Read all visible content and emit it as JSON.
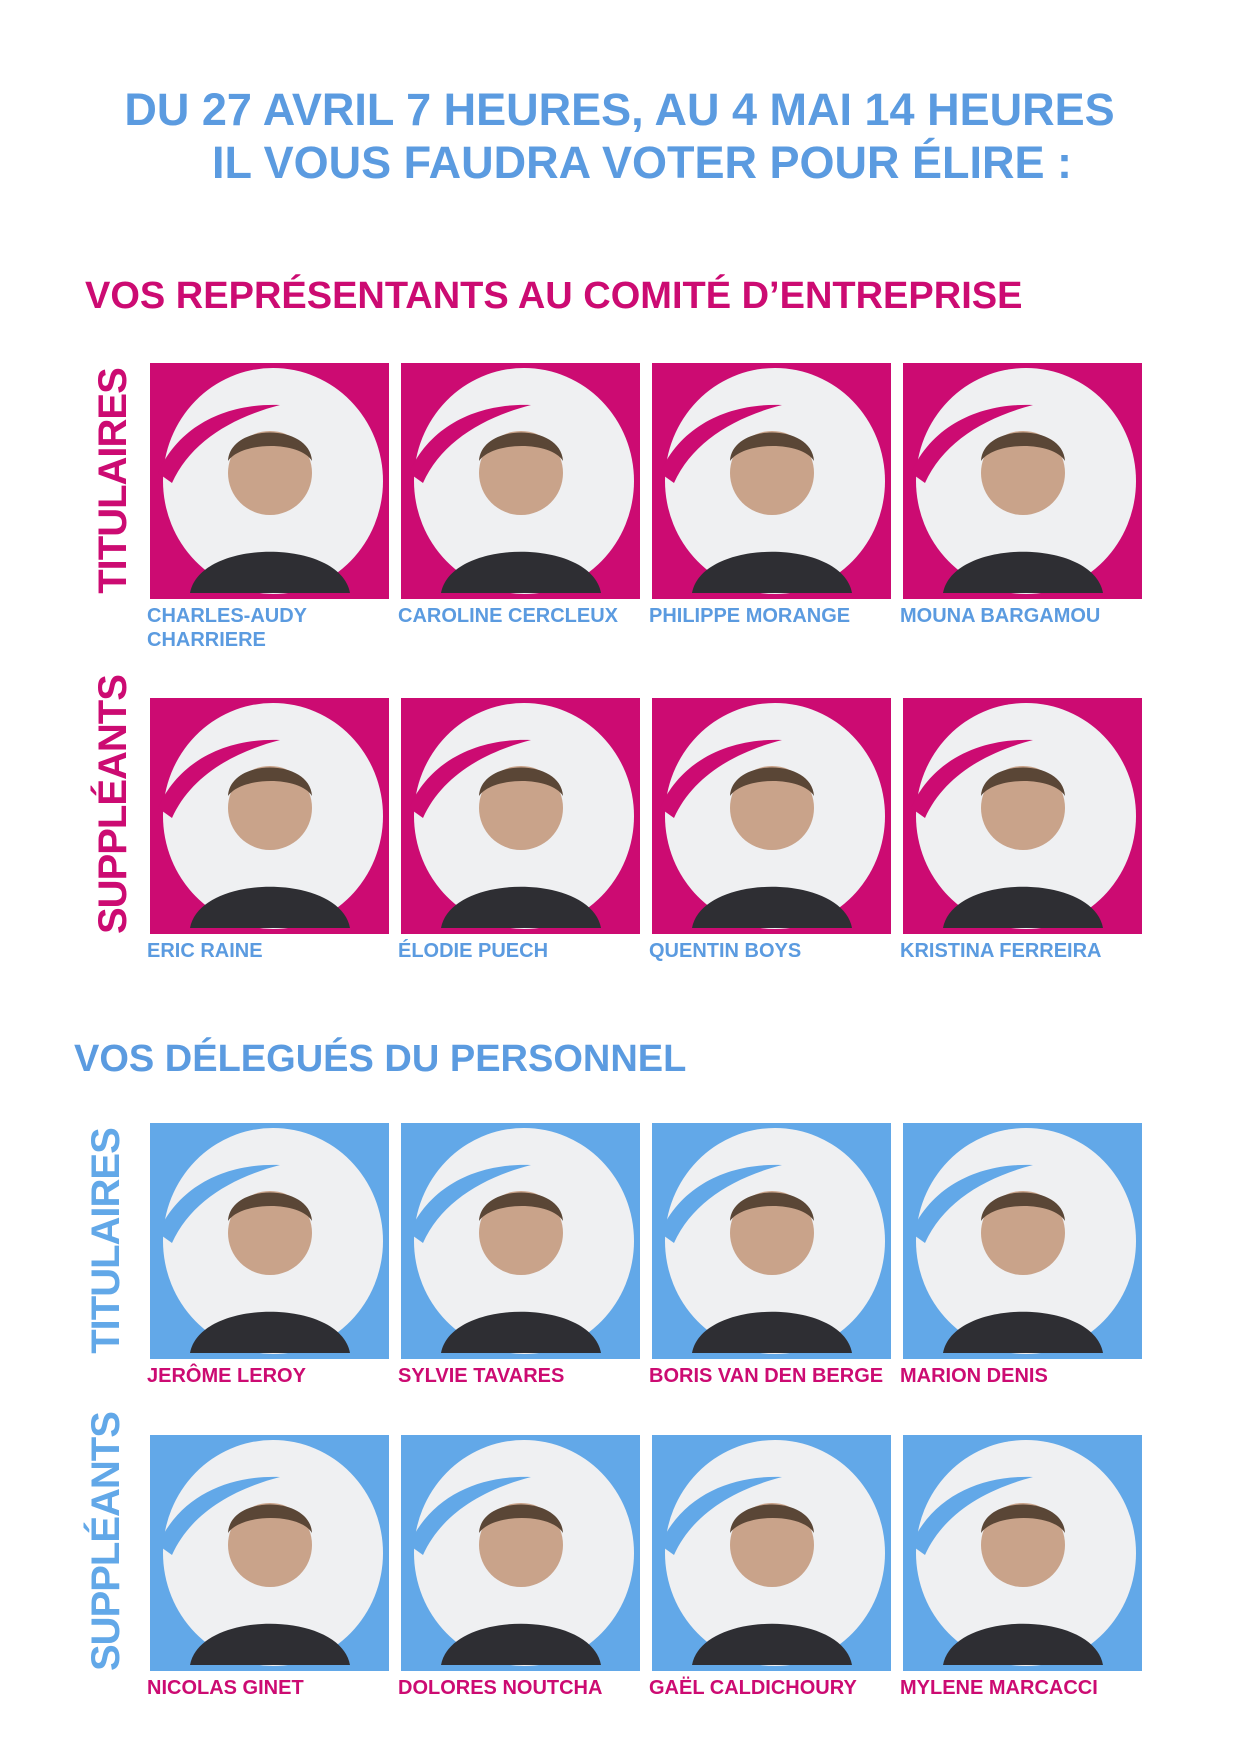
{
  "header": {
    "line1": "DU 27 AVRIL 7 HEURES, AU 4 MAI 14 HEURES",
    "line2": "IL VOUS FAUDRA VOTER POUR ÉLIRE :"
  },
  "colors": {
    "magenta": "#cc0b72",
    "blue": "#62a8e8",
    "title_blue": "#5b9be0"
  },
  "sections": [
    {
      "title": "VOS REPRÉSENTANTS AU COMITÉ D’ENTREPRISE",
      "theme": "magenta",
      "groups": [
        {
          "label": "TITULAIRES",
          "people": [
            "CHARLES-AUDY CHARRIERE",
            "CAROLINE CERCLEUX",
            "PHILIPPE MORANGE",
            "MOUNA BARGAMOU"
          ]
        },
        {
          "label": "SUPPLÉANTS",
          "people": [
            "ERIC RAINE",
            "ÉLODIE PUECH",
            "QUENTIN BOYS",
            "KRISTINA FERREIRA"
          ]
        }
      ]
    },
    {
      "title": "VOS DÉLEGUÉS DU PERSONNEL",
      "theme": "blue",
      "groups": [
        {
          "label": "TITULAIRES",
          "people": [
            "JERÔME LEROY",
            "SYLVIE TAVARES",
            "BORIS VAN DEN BERGE",
            "MARION DENIS"
          ]
        },
        {
          "label": "SUPPLÉANTS",
          "people": [
            "NICOLAS GINET",
            "DOLORES NOUTCHA",
            "GAËL CALDICHOURY",
            "MYLENE MARCACCI"
          ]
        }
      ]
    }
  ]
}
